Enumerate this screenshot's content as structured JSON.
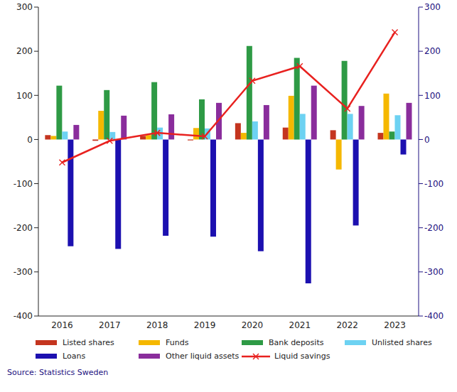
{
  "chart_data": {
    "type": "bar",
    "source": "Source: Statistics Sweden",
    "categories": [
      "2016",
      "2017",
      "2018",
      "2019",
      "2020",
      "2021",
      "2022",
      "2023"
    ],
    "series": [
      {
        "name": "Listed shares",
        "color": "#c4351f",
        "values": [
          10,
          -3,
          8,
          -2,
          37,
          27,
          21,
          15
        ]
      },
      {
        "name": "Funds",
        "color": "#f5b800",
        "values": [
          8,
          65,
          10,
          26,
          15,
          99,
          -68,
          104
        ]
      },
      {
        "name": "Bank deposits",
        "color": "#2e9a45",
        "values": [
          122,
          112,
          130,
          91,
          212,
          185,
          178,
          18
        ]
      },
      {
        "name": "Unlisted shares",
        "color": "#6dd2f2",
        "values": [
          18,
          17,
          27,
          25,
          41,
          58,
          58,
          55
        ]
      },
      {
        "name": "Loans",
        "color": "#1c10b0",
        "values": [
          -242,
          -248,
          -218,
          -220,
          -253,
          -326,
          -195,
          -34
        ]
      },
      {
        "name": "Other liquid assets",
        "color": "#8a2d9c",
        "values": [
          33,
          54,
          57,
          83,
          78,
          122,
          76,
          83
        ]
      },
      {
        "name": "Liquid savings",
        "type": "line",
        "color": "#e8211f",
        "marker": "x",
        "axis": "y2",
        "values": [
          -52,
          -3,
          15,
          7,
          133,
          166,
          70,
          243
        ]
      }
    ],
    "ylim": [
      -400,
      300
    ],
    "yticks": [
      -400,
      -300,
      -200,
      -100,
      0,
      100,
      200,
      300
    ],
    "y2lim": [
      -400,
      300
    ],
    "y2ticks": [
      -400,
      -300,
      -200,
      -100,
      0,
      100,
      200,
      300
    ]
  }
}
